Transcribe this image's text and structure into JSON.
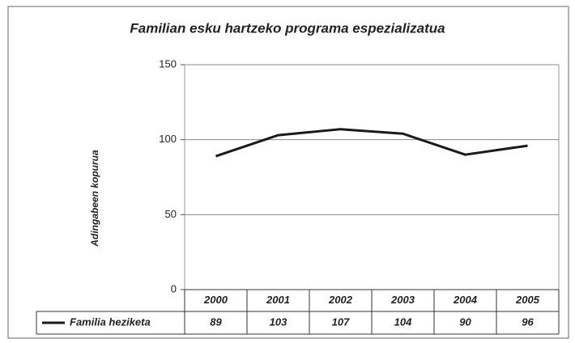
{
  "chart_data": {
    "type": "line",
    "title": "Familian esku hartzeko programa espezializatua",
    "y_label": "Adingabeen kopurua",
    "categories": [
      "2000",
      "2001",
      "2002",
      "2003",
      "2004",
      "2005"
    ],
    "series": [
      {
        "name": "Familia heziketa",
        "color": "#1a1a1a",
        "values": [
          89,
          103,
          107,
          104,
          90,
          96
        ]
      }
    ],
    "ylim": [
      0,
      150
    ],
    "yticks": [
      0,
      50,
      100,
      150
    ],
    "grid": true
  }
}
